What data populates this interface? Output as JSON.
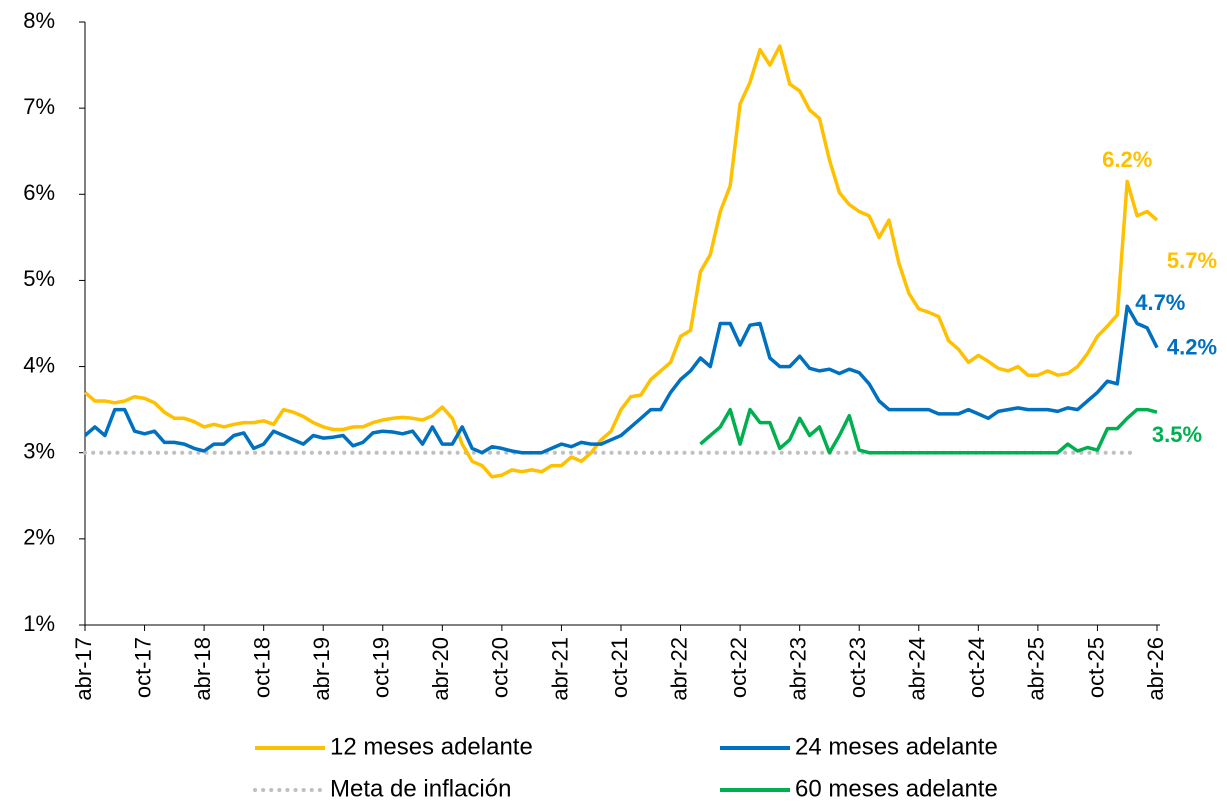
{
  "chart_data": {
    "type": "line",
    "categories": [
      "abr-17",
      null,
      null,
      null,
      null,
      null,
      "oct-17",
      null,
      null,
      null,
      null,
      null,
      "abr-18",
      null,
      null,
      null,
      null,
      null,
      "oct-18",
      null,
      null,
      null,
      null,
      null,
      "abr-19",
      null,
      null,
      null,
      null,
      null,
      "oct-19",
      null,
      null,
      null,
      null,
      null,
      "abr-20",
      null,
      null,
      null,
      null,
      null,
      "oct-20",
      null,
      null,
      null,
      null,
      null,
      "abr-21",
      null,
      null,
      null,
      null,
      null,
      "oct-21",
      null,
      null,
      null,
      null,
      null,
      "abr-22",
      null,
      null,
      null,
      null,
      null,
      "oct-22",
      null,
      null,
      null,
      null,
      null,
      "abr-23",
      null,
      null,
      null,
      null,
      null,
      "oct-23",
      null,
      null,
      null,
      null,
      null,
      "abr-24",
      null,
      null,
      null,
      null,
      null,
      "oct-24",
      null,
      null,
      null,
      null,
      null,
      "abr-25",
      null,
      null,
      null,
      null,
      null,
      "oct-25",
      null,
      null,
      null,
      null,
      null,
      "abr-26"
    ],
    "series": [
      {
        "name": "12 meses adelante",
        "color": "#ffc000",
        "style": "solid",
        "values": [
          3.7,
          3.6,
          3.6,
          3.58,
          3.6,
          3.65,
          3.63,
          3.58,
          3.47,
          3.4,
          3.4,
          3.36,
          3.3,
          3.33,
          3.3,
          3.33,
          3.35,
          3.35,
          3.37,
          3.33,
          3.5,
          3.47,
          3.42,
          3.35,
          3.3,
          3.27,
          3.27,
          3.3,
          3.3,
          3.35,
          3.38,
          3.4,
          3.41,
          3.4,
          3.38,
          3.43,
          3.53,
          3.4,
          3.1,
          2.9,
          2.85,
          2.72,
          2.74,
          2.8,
          2.78,
          2.8,
          2.78,
          2.85,
          2.85,
          2.95,
          2.9,
          3.0,
          3.15,
          3.25,
          3.5,
          3.65,
          3.67,
          3.85,
          3.95,
          4.05,
          4.35,
          4.42,
          5.1,
          5.3,
          5.8,
          6.1,
          7.05,
          7.3,
          7.68,
          7.5,
          7.72,
          7.28,
          7.2,
          6.98,
          6.88,
          6.4,
          6.02,
          5.88,
          5.8,
          5.75,
          5.5,
          5.7,
          5.2,
          4.85,
          4.67,
          4.63,
          4.58,
          4.3,
          4.2,
          4.05,
          4.13,
          4.06,
          3.98,
          3.95,
          4.0,
          3.9,
          3.9,
          3.95,
          3.9,
          3.92,
          4.0,
          4.15,
          4.35,
          4.47,
          4.6,
          6.15,
          5.75,
          5.8,
          5.7
        ],
        "value_labels": {
          "105": "6.2%",
          "108": "5.7%"
        }
      },
      {
        "name": "24 meses adelante",
        "color": "#0070c0",
        "style": "solid",
        "values": [
          3.2,
          3.3,
          3.2,
          3.5,
          3.5,
          3.25,
          3.22,
          3.25,
          3.12,
          3.12,
          3.1,
          3.05,
          3.02,
          3.1,
          3.1,
          3.2,
          3.23,
          3.05,
          3.1,
          3.25,
          3.2,
          3.15,
          3.1,
          3.2,
          3.17,
          3.18,
          3.2,
          3.08,
          3.12,
          3.23,
          3.25,
          3.24,
          3.22,
          3.25,
          3.1,
          3.3,
          3.1,
          3.1,
          3.3,
          3.05,
          3.0,
          3.07,
          3.05,
          3.02,
          3.0,
          3.0,
          3.0,
          3.05,
          3.1,
          3.07,
          3.12,
          3.1,
          3.1,
          3.15,
          3.2,
          3.3,
          3.4,
          3.5,
          3.5,
          3.7,
          3.85,
          3.95,
          4.1,
          4.0,
          4.5,
          4.5,
          4.25,
          4.48,
          4.5,
          4.1,
          4.0,
          4.0,
          4.12,
          3.98,
          3.95,
          3.97,
          3.92,
          3.97,
          3.93,
          3.8,
          3.6,
          3.5,
          3.5,
          3.5,
          3.5,
          3.5,
          3.45,
          3.45,
          3.45,
          3.5,
          3.45,
          3.4,
          3.48,
          3.5,
          3.52,
          3.5,
          3.5,
          3.5,
          3.48,
          3.52,
          3.5,
          3.6,
          3.7,
          3.83,
          3.8,
          4.7,
          4.5,
          4.45,
          4.22
        ],
        "value_labels": {
          "105": "4.7%",
          "108": "4.2%"
        }
      },
      {
        "name": "Meta de inflación",
        "color": "#bfbfbf",
        "style": "dotted",
        "values": [
          3,
          3,
          3,
          3,
          3,
          3,
          3,
          3,
          3,
          3,
          3,
          3,
          3,
          3,
          3,
          3,
          3,
          3,
          3,
          3,
          3,
          3,
          3,
          3,
          3,
          3,
          3,
          3,
          3,
          3,
          3,
          3,
          3,
          3,
          3,
          3,
          3,
          3,
          3,
          3,
          3,
          3,
          3,
          3,
          3,
          3,
          3,
          3,
          3,
          3,
          3,
          3,
          3,
          3,
          3,
          3,
          3,
          3,
          3,
          3,
          3,
          3,
          3,
          3,
          3,
          3,
          3,
          3,
          3,
          3,
          3,
          3,
          3,
          3,
          3,
          3,
          3,
          3,
          3,
          3,
          3,
          3,
          3,
          3,
          3,
          3,
          3,
          3,
          3,
          3,
          3,
          3,
          3,
          3,
          3,
          3,
          3,
          3,
          3,
          3,
          3,
          3,
          3,
          3,
          3,
          3,
          3,
          null,
          null
        ]
      },
      {
        "name": "60 meses adelante",
        "color": "#00b050",
        "style": "solid",
        "values": [
          null,
          null,
          null,
          null,
          null,
          null,
          null,
          null,
          null,
          null,
          null,
          null,
          null,
          null,
          null,
          null,
          null,
          null,
          null,
          null,
          null,
          null,
          null,
          null,
          null,
          null,
          null,
          null,
          null,
          null,
          null,
          null,
          null,
          null,
          null,
          null,
          null,
          null,
          null,
          null,
          null,
          null,
          null,
          null,
          null,
          null,
          null,
          null,
          null,
          null,
          null,
          null,
          null,
          null,
          null,
          null,
          null,
          null,
          null,
          null,
          null,
          null,
          3.1,
          3.2,
          3.3,
          3.5,
          3.1,
          3.5,
          3.35,
          3.35,
          3.05,
          3.15,
          3.4,
          3.2,
          3.3,
          3.0,
          3.2,
          3.43,
          3.03,
          3.0,
          3.0,
          3.0,
          3.0,
          3.0,
          3.0,
          3.0,
          3.0,
          3.0,
          3.0,
          3.0,
          3.0,
          3.0,
          3.0,
          3.0,
          3.0,
          3.0,
          3.0,
          3.0,
          3.0,
          3.1,
          3.02,
          3.06,
          3.03,
          3.28,
          3.28,
          3.4,
          3.5,
          3.5,
          3.47
        ],
        "value_labels": {
          "108": "3.5%"
        }
      }
    ],
    "ylim": [
      1,
      8
    ],
    "yticks": [
      {
        "value": 1,
        "label": "1%"
      },
      {
        "value": 2,
        "label": "2%"
      },
      {
        "value": 3,
        "label": "3%"
      },
      {
        "value": 4,
        "label": "4%"
      },
      {
        "value": 5,
        "label": "5%"
      },
      {
        "value": 6,
        "label": "6%"
      },
      {
        "value": 7,
        "label": "7%"
      },
      {
        "value": 8,
        "label": "8%"
      }
    ]
  }
}
